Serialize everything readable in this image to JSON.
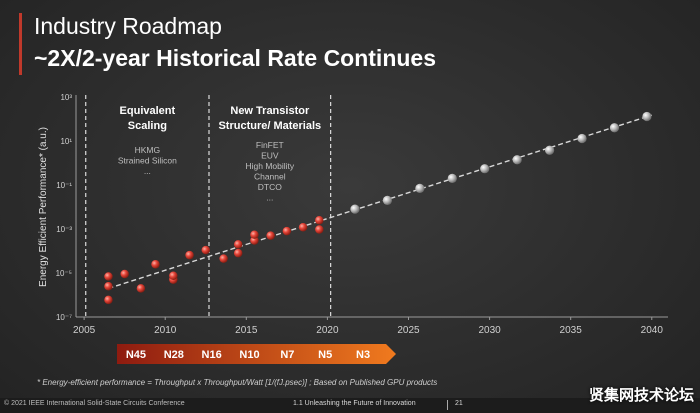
{
  "slide": {
    "title": "Industry Roadmap",
    "subtitle": "~2X/2-year Historical Rate Continues",
    "footnote": "* Energy-efficient performance = Throughput x Throughput/Watt [1/(fJ.psec)] ; Based on Published GPU products",
    "copyright": "© 2021 IEEE International Solid-State Circuits Conference",
    "section": "1.1 Unleashing the Future of Innovation",
    "page": "21",
    "watermark": "贤集网技术论坛"
  },
  "colors": {
    "accent": "#c0392b",
    "historical_points": "#e8463a",
    "projected_points": "#bdbdbd",
    "arrow_start": "#8e1b10",
    "arrow_end": "#f07a1e"
  },
  "chart_data": {
    "type": "scatter",
    "xlabel": "",
    "ylabel": "Energy Efficient Performance* (a.u.)",
    "y_scale": "log",
    "xlim": [
      2004.5,
      2041
    ],
    "ylim": [
      1e-07,
      1000
    ],
    "x_ticks": [
      2005,
      2010,
      2015,
      2020,
      2025,
      2030,
      2035,
      2040
    ],
    "y_ticks": [
      {
        "value": 1000,
        "label": "10³"
      },
      {
        "value": 10,
        "label": "10¹"
      },
      {
        "value": 0.1,
        "label": "10⁻¹"
      },
      {
        "value": 0.001,
        "label": "10⁻³"
      },
      {
        "value": 1e-05,
        "label": "10⁻⁵"
      },
      {
        "value": 1e-07,
        "label": "10⁻⁷"
      }
    ],
    "series": [
      {
        "points": [
          {
            "x": 2006.5,
            "y": 7e-06
          },
          {
            "x": 2006.5,
            "y": 2.5e-06
          },
          {
            "x": 2006.5,
            "y": 6e-07
          },
          {
            "x": 2007.5,
            "y": 9e-06
          },
          {
            "x": 2008.5,
            "y": 2e-06
          },
          {
            "x": 2009.4,
            "y": 2.5e-05
          },
          {
            "x": 2010.5,
            "y": 5e-06
          },
          {
            "x": 2010.5,
            "y": 7.5e-06
          },
          {
            "x": 2011.5,
            "y": 6.5e-05
          },
          {
            "x": 2012.5,
            "y": 0.00011
          },
          {
            "x": 2013.6,
            "y": 4.5e-05
          },
          {
            "x": 2014.5,
            "y": 8e-05
          },
          {
            "x": 2014.5,
            "y": 0.0002
          },
          {
            "x": 2015.5,
            "y": 0.0003
          },
          {
            "x": 2015.5,
            "y": 0.00055
          },
          {
            "x": 2016.5,
            "y": 0.0005
          },
          {
            "x": 2017.5,
            "y": 0.0008
          },
          {
            "x": 2018.5,
            "y": 0.0012
          },
          {
            "x": 2019.5,
            "y": 0.00095
          },
          {
            "x": 2019.5,
            "y": 0.0025
          }
        ]
      },
      {
        "points": [
          {
            "x": 2021.7,
            "y": 0.008
          },
          {
            "x": 2023.7,
            "y": 0.02
          },
          {
            "x": 2025.7,
            "y": 0.07
          },
          {
            "x": 2027.7,
            "y": 0.2
          },
          {
            "x": 2029.7,
            "y": 0.55
          },
          {
            "x": 2031.7,
            "y": 1.4
          },
          {
            "x": 2033.7,
            "y": 3.8
          },
          {
            "x": 2035.7,
            "y": 13
          },
          {
            "x": 2037.7,
            "y": 40
          },
          {
            "x": 2039.7,
            "y": 130
          }
        ]
      }
    ],
    "trend_line": {
      "from": {
        "x": 2006.5,
        "y": 2e-06
      },
      "to": {
        "x": 2040,
        "y": 150
      }
    },
    "era_dividers": [
      2005.1,
      2012.7,
      2020.2
    ],
    "annotations": [
      {
        "heading": [
          "Equivalent",
          "Scaling"
        ],
        "items": [
          "HKMG",
          "Strained Silicon",
          "..."
        ]
      },
      {
        "heading": [
          "New Transistor",
          "Structure/ Materials"
        ],
        "items": [
          "FinFET",
          "EUV",
          "High Mobility",
          "Channel",
          "DTCO",
          "..."
        ]
      }
    ],
    "nodes": [
      "N45",
      "N28",
      "N16",
      "N10",
      "N7",
      "N5",
      "N3"
    ],
    "grid": false,
    "legend": "none"
  }
}
